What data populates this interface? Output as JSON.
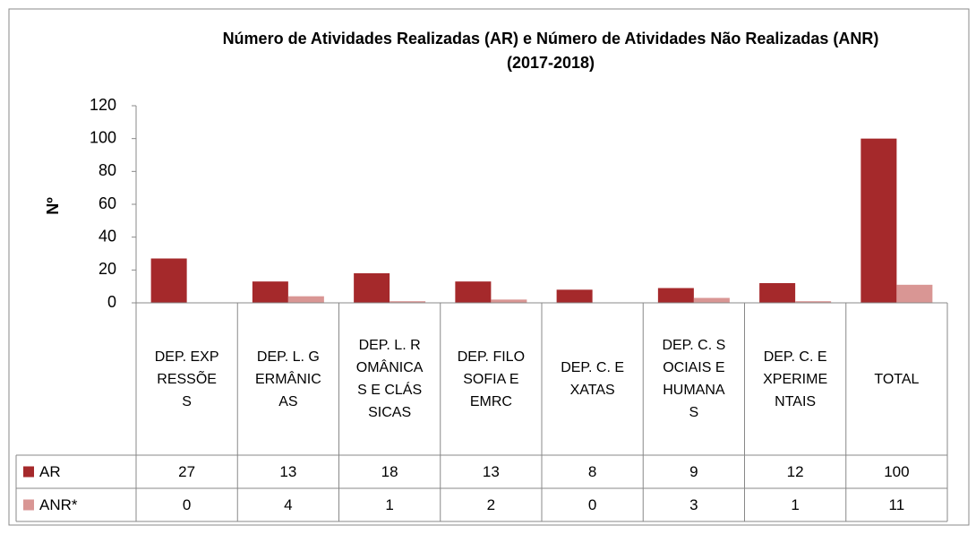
{
  "chart_data": {
    "type": "bar",
    "title": "Número de  Atividades  Realizadas (AR) e Número de Atividades Não Realizadas (ANR)  (2017-2018)",
    "y_label": "Nº",
    "categories": [
      "DEP. EXPRESSÕES",
      "DEP. L. GERMÂNICAS",
      "DEP. L. ROMÂNICAS E CLÁSSICAS",
      "DEP. FILOSOFIA E EMRC",
      "DEP. C. EXATAS",
      "DEP. C. SOCIAIS E HUMANAS",
      "DEP. C. EXPERIMENTAIS",
      "TOTAL"
    ],
    "series": [
      {
        "name": "AR",
        "color": "#a5292b",
        "values": [
          27,
          13,
          18,
          13,
          8,
          9,
          12,
          100
        ]
      },
      {
        "name": "ANR*",
        "color": "#d99694",
        "values": [
          0,
          4,
          1,
          2,
          0,
          3,
          1,
          11
        ]
      }
    ],
    "ylim": [
      0,
      120
    ],
    "yticks": [
      0,
      20,
      40,
      60,
      80,
      100,
      120
    ],
    "grid": false
  }
}
